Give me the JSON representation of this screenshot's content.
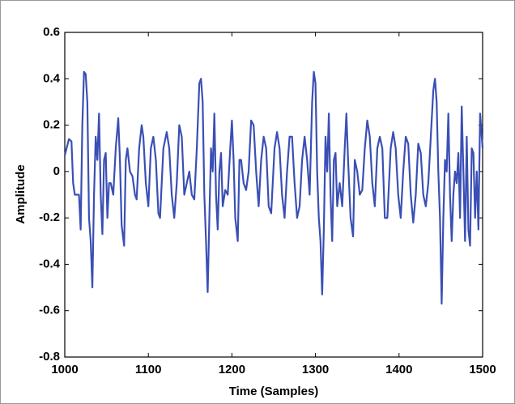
{
  "chart_data": {
    "type": "line",
    "xlabel": "Time (Samples)",
    "ylabel": "Amplitude",
    "xlim": [
      1000,
      1500
    ],
    "xticks": [
      1000,
      1100,
      1200,
      1300,
      1400,
      1500
    ],
    "ylim": [
      -0.8,
      0.6
    ],
    "yticks": [
      -0.8,
      -0.6,
      -0.4,
      -0.2,
      0,
      0.2,
      0.4,
      0.6
    ],
    "series": [
      {
        "color": "#3a4fb5",
        "x": [
          1000,
          1005,
          1008,
          1010,
          1012,
          1017,
          1019,
          1021,
          1023,
          1025,
          1027,
          1029,
          1031,
          1033,
          1035,
          1037,
          1039,
          1041,
          1043,
          1045,
          1047,
          1049,
          1051,
          1053,
          1055,
          1058,
          1061,
          1064,
          1066,
          1068,
          1071,
          1073,
          1075,
          1078,
          1081,
          1084,
          1086,
          1089,
          1092,
          1094,
          1097,
          1100,
          1103,
          1106,
          1109,
          1112,
          1114,
          1118,
          1122,
          1125,
          1128,
          1131,
          1134,
          1137,
          1140,
          1143,
          1146,
          1149,
          1152,
          1155,
          1158,
          1161,
          1163,
          1165,
          1167,
          1169,
          1171,
          1173,
          1175,
          1177,
          1179,
          1181,
          1183,
          1185,
          1187,
          1189,
          1192,
          1195,
          1198,
          1200,
          1202,
          1204,
          1207,
          1209,
          1211,
          1214,
          1217,
          1220,
          1223,
          1226,
          1229,
          1232,
          1235,
          1238,
          1241,
          1244,
          1247,
          1251,
          1254,
          1257,
          1260,
          1263,
          1266,
          1269,
          1272,
          1275,
          1278,
          1281,
          1284,
          1287,
          1290,
          1293,
          1296,
          1298,
          1300,
          1302,
          1304,
          1306,
          1308,
          1310,
          1312,
          1314,
          1316,
          1318,
          1320,
          1322,
          1324,
          1326,
          1329,
          1332,
          1335,
          1337,
          1339,
          1342,
          1345,
          1347,
          1350,
          1353,
          1356,
          1359,
          1362,
          1365,
          1368,
          1371,
          1374,
          1377,
          1380,
          1383,
          1386,
          1390,
          1393,
          1396,
          1399,
          1402,
          1405,
          1408,
          1411,
          1414,
          1417,
          1420,
          1423,
          1426,
          1429,
          1432,
          1435,
          1438,
          1441,
          1443,
          1445,
          1447,
          1449,
          1451,
          1453,
          1455,
          1457,
          1459,
          1461,
          1463,
          1465,
          1467,
          1469,
          1471,
          1473,
          1475,
          1477,
          1479,
          1481,
          1483,
          1485,
          1487,
          1489,
          1491,
          1493,
          1495,
          1497,
          1499,
          1500
        ],
        "values": [
          0.07,
          0.14,
          0.13,
          -0.05,
          -0.1,
          -0.1,
          -0.25,
          0.2,
          0.43,
          0.42,
          0.3,
          -0.2,
          -0.3,
          -0.5,
          -0.1,
          0.15,
          0.05,
          0.25,
          -0.1,
          -0.27,
          0.05,
          0.08,
          -0.2,
          -0.05,
          -0.05,
          -0.1,
          0.1,
          0.23,
          0.05,
          -0.23,
          -0.32,
          0.05,
          0.1,
          0,
          -0.02,
          -0.1,
          -0.12,
          0.1,
          0.2,
          0.15,
          -0.05,
          -0.15,
          0.1,
          0.15,
          0.05,
          -0.18,
          -0.2,
          0.1,
          0.17,
          0.1,
          -0.1,
          -0.2,
          -0.05,
          0.2,
          0.15,
          -0.1,
          -0.05,
          0,
          -0.1,
          -0.12,
          0.1,
          0.38,
          0.4,
          0.3,
          -0.1,
          -0.3,
          -0.52,
          -0.2,
          0.1,
          0,
          0.25,
          -0.1,
          -0.25,
          0,
          0.08,
          -0.15,
          -0.08,
          -0.1,
          0.1,
          0.22,
          0.05,
          -0.2,
          -0.3,
          0.05,
          0.05,
          -0.05,
          -0.08,
          0,
          0.22,
          0.2,
          0,
          -0.15,
          0.05,
          0.15,
          0.1,
          -0.15,
          -0.18,
          0.1,
          0.17,
          0.1,
          -0.1,
          -0.2,
          0,
          0.15,
          0.15,
          -0.05,
          -0.2,
          -0.15,
          0.05,
          0.15,
          0.05,
          -0.1,
          0.3,
          0.43,
          0.38,
          0,
          -0.2,
          -0.3,
          -0.53,
          -0.25,
          0.15,
          0,
          0.25,
          -0.1,
          -0.3,
          0.05,
          0.08,
          -0.15,
          -0.05,
          -0.15,
          0.1,
          0.25,
          0.05,
          -0.2,
          -0.28,
          0.05,
          0,
          -0.1,
          -0.08,
          0.1,
          0.22,
          0.15,
          -0.05,
          -0.15,
          0.1,
          0.15,
          0.1,
          -0.2,
          -0.2,
          0.1,
          0.17,
          0.1,
          -0.1,
          -0.2,
          0,
          0.15,
          0.12,
          -0.1,
          -0.22,
          -0.1,
          0.12,
          0.08,
          -0.1,
          -0.15,
          -0.05,
          0.15,
          0.35,
          0.4,
          0.3,
          0,
          -0.2,
          -0.57,
          -0.2,
          0.05,
          0,
          0.25,
          -0.1,
          -0.3,
          -0.1,
          0,
          -0.05,
          0.08,
          -0.2,
          0.28,
          0,
          -0.3,
          0.15,
          -0.25,
          -0.32,
          0.1,
          0.08,
          -0.2,
          0,
          -0.25,
          0.25,
          0.15,
          0.1
        ]
      }
    ]
  }
}
